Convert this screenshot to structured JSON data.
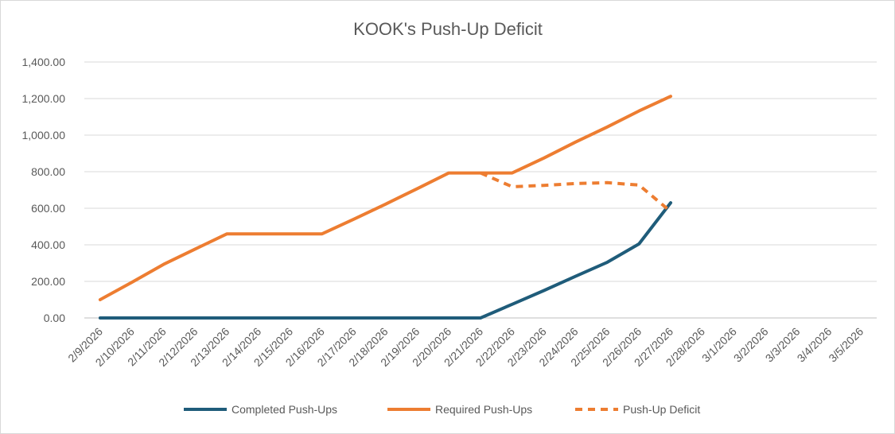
{
  "chart_data": {
    "type": "line",
    "title": "KOOK's Push-Up Deficit",
    "xlabel": "",
    "ylabel": "",
    "ylim": [
      0,
      1400
    ],
    "yticks": [
      "0.00",
      "200.00",
      "400.00",
      "600.00",
      "800.00",
      "1,000.00",
      "1,200.00",
      "1,400.00"
    ],
    "ytick_values": [
      0,
      200,
      400,
      600,
      800,
      1000,
      1200,
      1400
    ],
    "categories": [
      "2/9/2026",
      "2/10/2026",
      "2/11/2026",
      "2/12/2026",
      "2/13/2026",
      "2/14/2026",
      "2/15/2026",
      "2/16/2026",
      "2/17/2026",
      "2/18/2026",
      "2/19/2026",
      "2/20/2026",
      "2/21/2026",
      "2/22/2026",
      "2/23/2026",
      "2/24/2026",
      "2/25/2026",
      "2/26/2026",
      "2/27/2026",
      "2/28/2026",
      "3/1/2026",
      "3/2/2026",
      "3/3/2026",
      "3/4/2026",
      "3/5/2026"
    ],
    "grid": true,
    "legend_position": "bottom",
    "series": [
      {
        "name": "Completed Push-Ups",
        "color": "#1f5c7a",
        "dash": false,
        "values": [
          0,
          0,
          0,
          0,
          0,
          0,
          0,
          0,
          0,
          0,
          0,
          0,
          0,
          75,
          150,
          228,
          305,
          405,
          630,
          null,
          null,
          null,
          null,
          null,
          null
        ]
      },
      {
        "name": "Required Push-Ups",
        "color": "#ed7d31",
        "dash": false,
        "values": [
          100,
          195,
          293,
          377,
          460,
          460,
          460,
          460,
          540,
          622,
          707,
          793,
          793,
          793,
          875,
          962,
          1045,
          1132,
          1212,
          null,
          null,
          null,
          null,
          null,
          null
        ]
      },
      {
        "name": "Push-Up Deficit",
        "color": "#ed7d31",
        "dash": true,
        "values": [
          null,
          null,
          null,
          null,
          null,
          null,
          null,
          null,
          null,
          null,
          null,
          null,
          793,
          718,
          725,
          735,
          740,
          727,
          582,
          null,
          null,
          null,
          null,
          null,
          null
        ]
      }
    ]
  }
}
